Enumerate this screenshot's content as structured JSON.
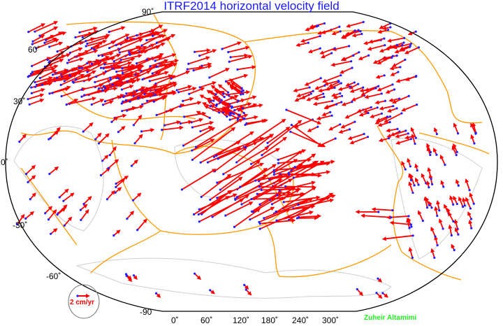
{
  "title": "ITRF2014 horizontal velocity field",
  "latitude_labels": [
    "90˚",
    "60˚",
    "30˚",
    "0˚",
    "-30˚",
    "-60˚",
    "-90"
  ],
  "longitude_labels": [
    "0˚",
    "60˚",
    "120˚",
    "180˚",
    "240˚",
    "300˚"
  ],
  "legend": {
    "label": "2 cm/yr"
  },
  "credit": "Zuheir Altamimi",
  "colors": {
    "title": "#1a1aff",
    "vector": "#ff0000",
    "station": "#2020ff",
    "plate_boundary": "#ff9900",
    "coastline": "#cccccc",
    "credit": "#22ee22"
  }
}
